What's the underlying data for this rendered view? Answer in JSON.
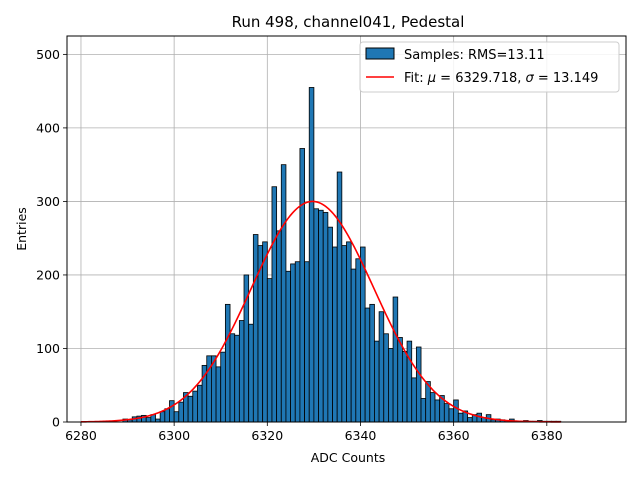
{
  "chart_data": {
    "type": "bar",
    "title": "Run 498, channel041, Pedestal",
    "xlabel": "ADC Counts",
    "ylabel": "Entries",
    "xlim": [
      6277,
      6397
    ],
    "ylim": [
      0,
      525
    ],
    "xticks": [
      6280,
      6300,
      6320,
      6340,
      6360,
      6380
    ],
    "yticks": [
      0,
      100,
      200,
      300,
      400,
      500
    ],
    "grid": true,
    "legend_position": "top-right",
    "colors": {
      "bars": "#1f77b4",
      "bar_edge": "#000000",
      "fit": "#ff0000",
      "grid": "#b0b0b0"
    },
    "histogram": {
      "name": "Samples: RMS=13.11",
      "bin_width": 1,
      "bin_starts": [
        6289,
        6290,
        6291,
        6292,
        6293,
        6294,
        6295,
        6296,
        6297,
        6298,
        6299,
        6300,
        6301,
        6302,
        6303,
        6304,
        6305,
        6306,
        6307,
        6308,
        6309,
        6310,
        6311,
        6312,
        6313,
        6314,
        6315,
        6316,
        6317,
        6318,
        6319,
        6320,
        6321,
        6322,
        6323,
        6324,
        6325,
        6326,
        6327,
        6328,
        6329,
        6330,
        6331,
        6332,
        6333,
        6334,
        6335,
        6336,
        6337,
        6338,
        6339,
        6340,
        6341,
        6342,
        6343,
        6344,
        6345,
        6346,
        6347,
        6348,
        6349,
        6350,
        6351,
        6352,
        6353,
        6354,
        6355,
        6356,
        6357,
        6358,
        6359,
        6360,
        6361,
        6362,
        6363,
        6364,
        6365,
        6366,
        6367,
        6368,
        6369,
        6370,
        6371,
        6372,
        6373,
        6374,
        6375,
        6376,
        6377,
        6378,
        6379,
        6380,
        6381,
        6382
      ],
      "counts": [
        4,
        3,
        7,
        8,
        9,
        6,
        10,
        4,
        14,
        18,
        29,
        14,
        27,
        40,
        35,
        42,
        50,
        77,
        90,
        90,
        75,
        95,
        160,
        120,
        118,
        138,
        200,
        133,
        255,
        240,
        245,
        195,
        320,
        260,
        350,
        205,
        215,
        218,
        372,
        218,
        455,
        290,
        288,
        285,
        265,
        238,
        340,
        240,
        245,
        208,
        222,
        238,
        155,
        160,
        110,
        150,
        120,
        100,
        170,
        115,
        96,
        110,
        60,
        102,
        32,
        55,
        40,
        30,
        36,
        25,
        18,
        30,
        12,
        15,
        6,
        10,
        12,
        6,
        10,
        3,
        4,
        3,
        2,
        4,
        1,
        1,
        2,
        1,
        1,
        2,
        1,
        1,
        1,
        1
      ]
    },
    "fit": {
      "name": "Fit: μ = 6329.718, σ = 13.149",
      "mu": 6329.718,
      "sigma": 13.149,
      "amplitude": 300,
      "x_range": [
        6280,
        6383
      ]
    },
    "legend": [
      {
        "label": "Samples: RMS=13.11",
        "kind": "patch"
      },
      {
        "label_prefix": "Fit: ",
        "mu_symbol": "μ",
        "mu_text": " = 6329.718, ",
        "sigma_symbol": "σ",
        "sigma_text": " = 13.149",
        "kind": "line"
      }
    ]
  }
}
